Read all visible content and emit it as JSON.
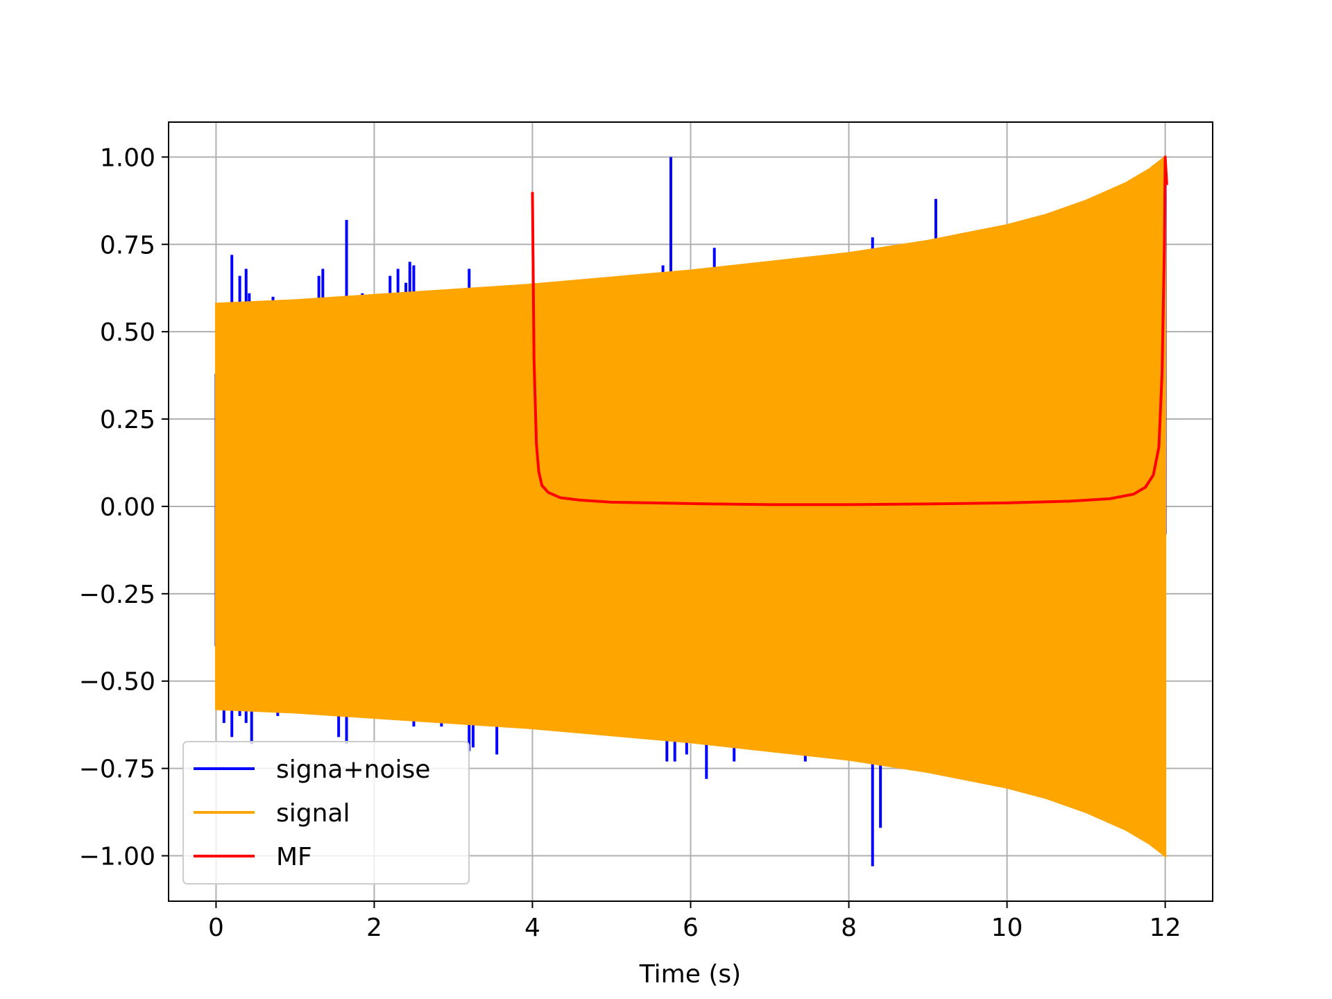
{
  "chart_data": {
    "type": "line",
    "title": "",
    "xlabel": "Time (s)",
    "ylabel": "",
    "xlim": [
      -0.6,
      12.6
    ],
    "ylim": [
      -1.13,
      1.1
    ],
    "xticks": [
      0,
      2,
      4,
      6,
      8,
      10,
      12
    ],
    "xtick_labels": [
      "0",
      "2",
      "4",
      "6",
      "8",
      "10",
      "12"
    ],
    "yticks": [
      1.0,
      0.75,
      0.5,
      0.25,
      0.0,
      -0.25,
      -0.5,
      -0.75,
      -1.0
    ],
    "ytick_labels": [
      "1.00",
      "0.75",
      "0.50",
      "0.25",
      "0.00",
      "−0.25",
      "−0.50",
      "−0.75",
      "−1.00"
    ],
    "grid": true,
    "legend_position": "lower-left",
    "series": [
      {
        "name": "signa+noise",
        "color": "#0000ff",
        "spikes": [
          [
            0.0,
            0.38
          ],
          [
            0.0,
            -0.4
          ],
          [
            0.1,
            0.58
          ],
          [
            0.1,
            -0.62
          ],
          [
            0.2,
            0.72
          ],
          [
            0.2,
            -0.66
          ],
          [
            0.3,
            0.66
          ],
          [
            0.3,
            -0.6
          ],
          [
            0.38,
            0.68
          ],
          [
            0.38,
            -0.62
          ],
          [
            0.42,
            0.61
          ],
          [
            0.45,
            -0.68
          ],
          [
            0.72,
            0.6
          ],
          [
            0.78,
            -0.6
          ],
          [
            1.3,
            0.66
          ],
          [
            1.35,
            0.68
          ],
          [
            1.55,
            -0.66
          ],
          [
            1.65,
            -0.68
          ],
          [
            1.65,
            0.82
          ],
          [
            1.85,
            0.61
          ],
          [
            2.2,
            0.66
          ],
          [
            2.3,
            0.68
          ],
          [
            2.4,
            0.64
          ],
          [
            2.45,
            0.7
          ],
          [
            2.5,
            0.69
          ],
          [
            2.5,
            -0.63
          ],
          [
            2.85,
            -0.63
          ],
          [
            3.2,
            0.68
          ],
          [
            3.2,
            -0.7
          ],
          [
            3.25,
            -0.69
          ],
          [
            3.55,
            -0.71
          ],
          [
            4.9,
            -0.65
          ],
          [
            5.65,
            0.69
          ],
          [
            5.7,
            -0.73
          ],
          [
            5.75,
            1.0
          ],
          [
            5.8,
            -0.73
          ],
          [
            5.95,
            -0.71
          ],
          [
            6.2,
            -0.78
          ],
          [
            6.3,
            0.74
          ],
          [
            6.5,
            -0.69
          ],
          [
            6.55,
            -0.73
          ],
          [
            7.45,
            -0.73
          ],
          [
            8.3,
            0.77
          ],
          [
            8.3,
            -1.03
          ],
          [
            8.4,
            -0.92
          ],
          [
            9.1,
            0.88
          ],
          [
            12.0,
            0.92
          ],
          [
            12.0,
            -0.08
          ]
        ]
      },
      {
        "name": "signal",
        "color": "#ffa500",
        "envelope": [
          [
            0,
            0.58
          ],
          [
            1,
            0.59
          ],
          [
            2,
            0.605
          ],
          [
            3,
            0.62
          ],
          [
            4,
            0.635
          ],
          [
            5,
            0.655
          ],
          [
            6,
            0.675
          ],
          [
            7,
            0.7
          ],
          [
            8,
            0.725
          ],
          [
            9,
            0.76
          ],
          [
            10,
            0.805
          ],
          [
            10.5,
            0.835
          ],
          [
            11,
            0.875
          ],
          [
            11.5,
            0.925
          ],
          [
            11.8,
            0.965
          ],
          [
            12,
            1.0
          ]
        ]
      },
      {
        "name": "MF",
        "color": "#ff0000",
        "points": [
          [
            4.0,
            0.9
          ],
          [
            4.02,
            0.42
          ],
          [
            4.05,
            0.18
          ],
          [
            4.08,
            0.1
          ],
          [
            4.12,
            0.06
          ],
          [
            4.2,
            0.04
          ],
          [
            4.35,
            0.025
          ],
          [
            4.6,
            0.018
          ],
          [
            5.0,
            0.012
          ],
          [
            6.0,
            0.008
          ],
          [
            7.0,
            0.005
          ],
          [
            8.0,
            0.005
          ],
          [
            9.0,
            0.007
          ],
          [
            10.0,
            0.01
          ],
          [
            10.8,
            0.015
          ],
          [
            11.3,
            0.022
          ],
          [
            11.6,
            0.035
          ],
          [
            11.75,
            0.055
          ],
          [
            11.85,
            0.09
          ],
          [
            11.92,
            0.17
          ],
          [
            11.96,
            0.38
          ],
          [
            11.99,
            0.75
          ],
          [
            12.0,
            1.0
          ],
          [
            12.02,
            0.92
          ]
        ]
      }
    ]
  }
}
